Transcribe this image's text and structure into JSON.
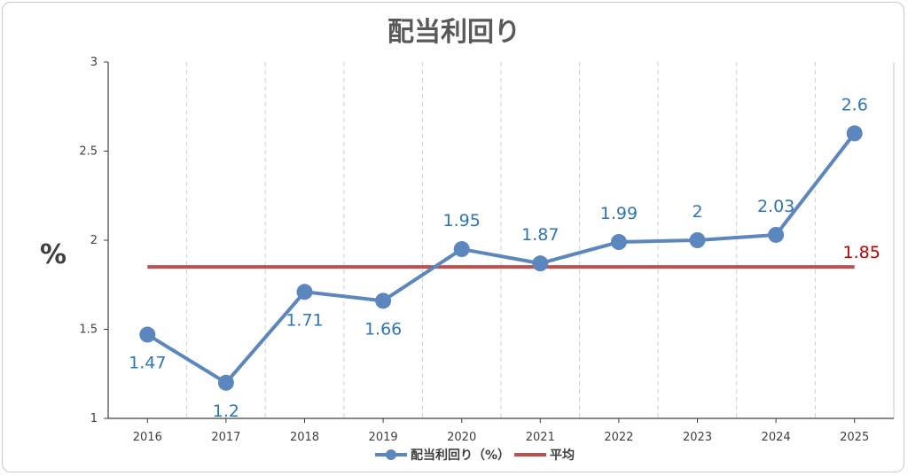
{
  "chart_data": {
    "type": "line",
    "title": "配当利回り",
    "ylabel": "%",
    "xlabel": "",
    "categories": [
      "2016",
      "2017",
      "2018",
      "2019",
      "2020",
      "2021",
      "2022",
      "2023",
      "2024",
      "2025"
    ],
    "ylim": [
      1,
      3
    ],
    "yticks": [
      "1",
      "1.5",
      "2",
      "2.5",
      "3"
    ],
    "grid": "vertical-dashed",
    "legend_position": "bottom",
    "series": [
      {
        "name": "配当利回り（%）",
        "color": "#5b86be",
        "values": [
          1.47,
          1.2,
          1.71,
          1.66,
          1.95,
          1.87,
          1.99,
          2,
          2.03,
          2.6
        ],
        "labels": [
          "1.47",
          "1.2",
          "1.71",
          "1.66",
          "1.95",
          "1.87",
          "1.99",
          "2",
          "2.03",
          "2.6"
        ]
      },
      {
        "name": "平均",
        "color": "#c0504d",
        "value": 1.85,
        "label": "1.85"
      }
    ]
  }
}
